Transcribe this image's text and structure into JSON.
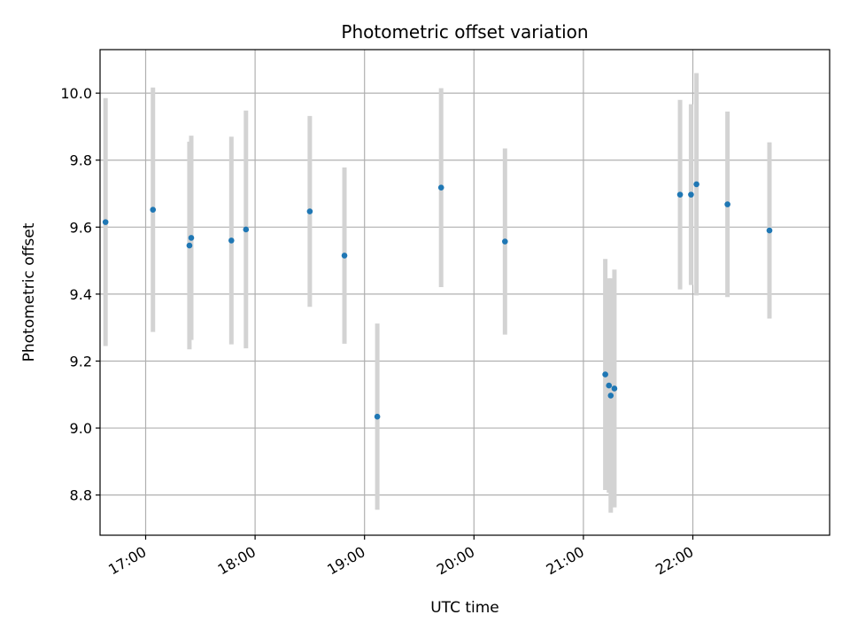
{
  "chart_data": {
    "type": "scatter",
    "title": "Photometric offset variation",
    "xlabel": "UTC time",
    "ylabel": "Photometric offset",
    "xlim": [
      "16:35",
      "23:15"
    ],
    "ylim": [
      8.68,
      10.13
    ],
    "grid": true,
    "x_ticks": [
      "17:00",
      "18:00",
      "19:00",
      "20:00",
      "21:00",
      "22:00"
    ],
    "y_ticks": [
      "8.8",
      "9.0",
      "9.2",
      "9.4",
      "9.6",
      "9.8",
      "10.0"
    ],
    "marker_color": "#1f77b4",
    "errorbar_color": "#d3d3d3",
    "points": [
      {
        "t": "16:38",
        "y": 9.615,
        "yerr": 0.37
      },
      {
        "t": "17:04",
        "y": 9.652,
        "yerr": 0.365
      },
      {
        "t": "17:24",
        "y": 9.545,
        "yerr": 0.31
      },
      {
        "t": "17:25",
        "y": 9.568,
        "yerr": 0.305
      },
      {
        "t": "17:47",
        "y": 9.56,
        "yerr": 0.31
      },
      {
        "t": "17:55",
        "y": 9.593,
        "yerr": 0.355
      },
      {
        "t": "18:30",
        "y": 9.647,
        "yerr": 0.285
      },
      {
        "t": "18:49",
        "y": 9.515,
        "yerr": 0.263
      },
      {
        "t": "19:07",
        "y": 9.034,
        "yerr": 0.278
      },
      {
        "t": "19:42",
        "y": 9.718,
        "yerr": 0.297
      },
      {
        "t": "20:17",
        "y": 9.557,
        "yerr": 0.278
      },
      {
        "t": "21:12",
        "y": 9.16,
        "yerr": 0.345
      },
      {
        "t": "21:14",
        "y": 9.127,
        "yerr": 0.32
      },
      {
        "t": "21:15",
        "y": 9.097,
        "yerr": 0.35
      },
      {
        "t": "21:17",
        "y": 9.118,
        "yerr": 0.355
      },
      {
        "t": "21:53",
        "y": 9.697,
        "yerr": 0.283
      },
      {
        "t": "21:59",
        "y": 9.697,
        "yerr": 0.27
      },
      {
        "t": "22:02",
        "y": 9.728,
        "yerr": 0.332
      },
      {
        "t": "22:19",
        "y": 9.668,
        "yerr": 0.277
      },
      {
        "t": "22:42",
        "y": 9.59,
        "yerr": 0.263
      }
    ]
  }
}
